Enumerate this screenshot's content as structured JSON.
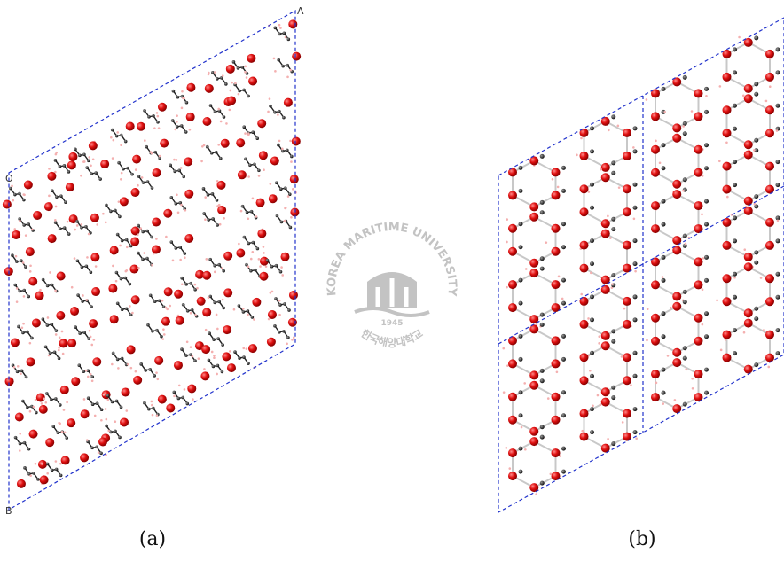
{
  "panels": [
    {
      "label": "(a)",
      "axes": {
        "a": "A",
        "origin": "O",
        "b": "B"
      }
    },
    {
      "label": "(b)"
    }
  ],
  "watermark": {
    "name": "KOREA MARITIME UNIVERSITY",
    "year": "1945",
    "korean": "한국해양대학교"
  }
}
